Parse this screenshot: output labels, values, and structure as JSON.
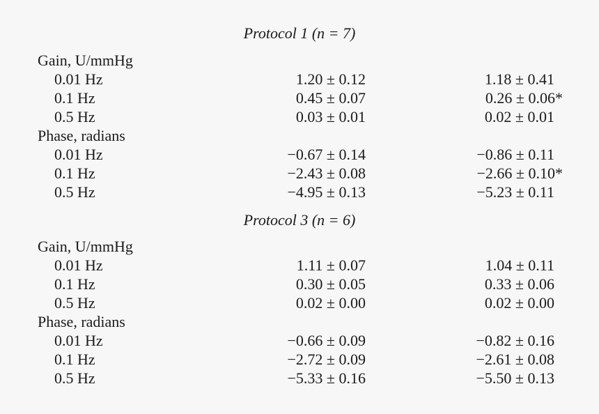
{
  "sections": [
    {
      "title": "Protocol 1 (n = 7)",
      "groups": [
        {
          "label": "Gain, U/mmHg",
          "rows": [
            {
              "label": "0.01 Hz",
              "cells": [
                "1.20 ± 0.12",
                "1.18 ± 0.41"
              ]
            },
            {
              "label": "0.1 Hz",
              "cells": [
                "0.45 ± 0.07",
                "0.26 ± 0.06*"
              ]
            },
            {
              "label": "0.5 Hz",
              "cells": [
                "0.03 ± 0.01",
                "0.02 ± 0.01"
              ]
            }
          ]
        },
        {
          "label": "Phase, radians",
          "rows": [
            {
              "label": "0.01 Hz",
              "cells": [
                "−0.67 ± 0.14",
                "−0.86 ± 0.11"
              ]
            },
            {
              "label": "0.1 Hz",
              "cells": [
                "−2.43 ± 0.08",
                "−2.66 ± 0.10*"
              ]
            },
            {
              "label": "0.5 Hz",
              "cells": [
                "−4.95 ± 0.13",
                "−5.23 ± 0.11"
              ]
            }
          ]
        }
      ]
    },
    {
      "title": "Protocol 3 (n = 6)",
      "groups": [
        {
          "label": "Gain, U/mmHg",
          "rows": [
            {
              "label": "0.01 Hz",
              "cells": [
                "1.11 ± 0.07",
                "1.04 ± 0.11"
              ]
            },
            {
              "label": "0.1 Hz",
              "cells": [
                "0.30 ± 0.05",
                "0.33 ± 0.06"
              ]
            },
            {
              "label": "0.5 Hz",
              "cells": [
                "0.02 ± 0.00",
                "0.02 ± 0.00"
              ]
            }
          ]
        },
        {
          "label": "Phase, radians",
          "rows": [
            {
              "label": "0.01 Hz",
              "cells": [
                "−0.66 ± 0.09",
                "−0.82 ± 0.16"
              ]
            },
            {
              "label": "0.1 Hz",
              "cells": [
                "−2.72 ± 0.09",
                "−2.61 ± 0.08"
              ]
            },
            {
              "label": "0.5 Hz",
              "cells": [
                "−5.33 ± 0.16",
                "−5.50 ± 0.13"
              ]
            }
          ]
        }
      ]
    }
  ]
}
